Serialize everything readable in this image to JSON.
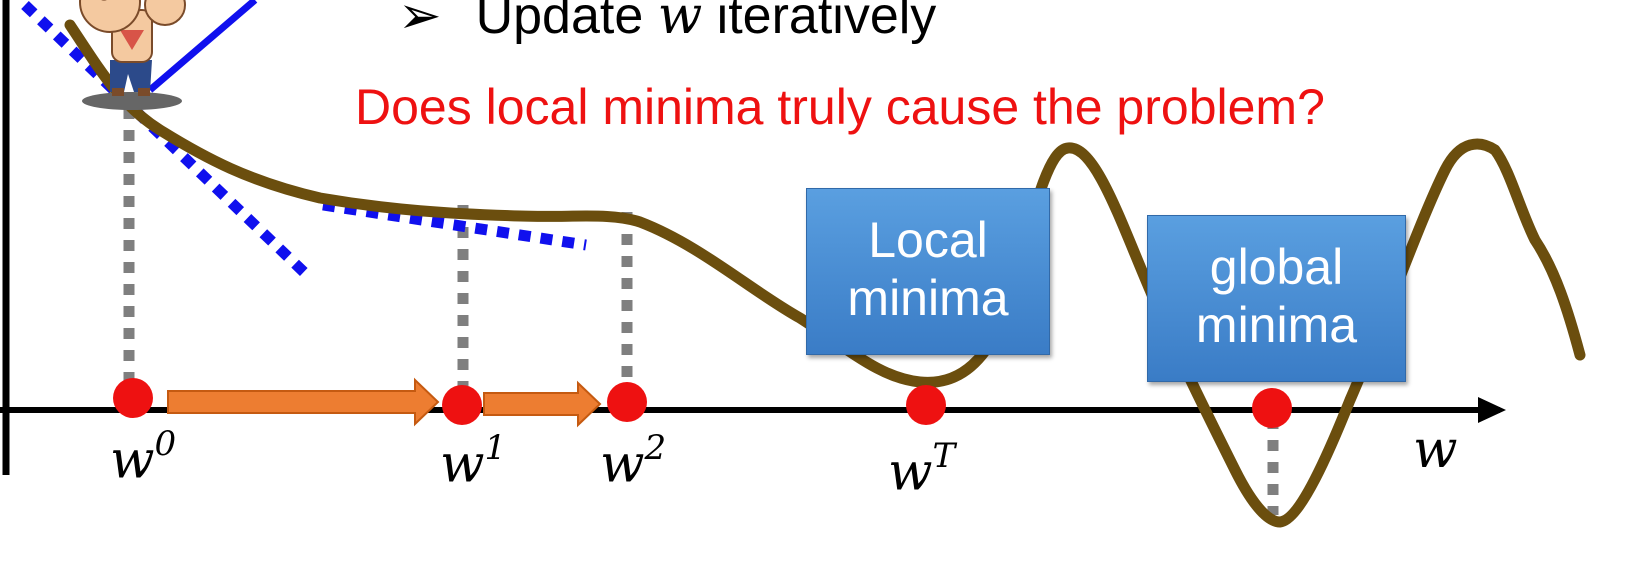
{
  "bullet": {
    "marker": "➢",
    "prefix": "Update ",
    "variable": "w",
    "suffix": " iteratively"
  },
  "question": "Does local minima truly cause the problem?",
  "callouts": {
    "local": {
      "line1": "Local",
      "line2": "minima"
    },
    "global": {
      "line1": "global",
      "line2": "minima"
    }
  },
  "axis_labels": {
    "w0": {
      "base": "w",
      "sup": "0"
    },
    "w1": {
      "base": "w",
      "sup": "1"
    },
    "w2": {
      "base": "w",
      "sup": "2"
    },
    "wT": {
      "base": "w",
      "sup": "T"
    },
    "w": {
      "base": "w",
      "sup": ""
    }
  },
  "colors": {
    "curve": "#6b4e0e",
    "tangent": "#1010ee",
    "point": "#ee1111",
    "step_arrow": "#ed7d31",
    "guide": "#7f7f7f",
    "question": "#ee1111"
  }
}
